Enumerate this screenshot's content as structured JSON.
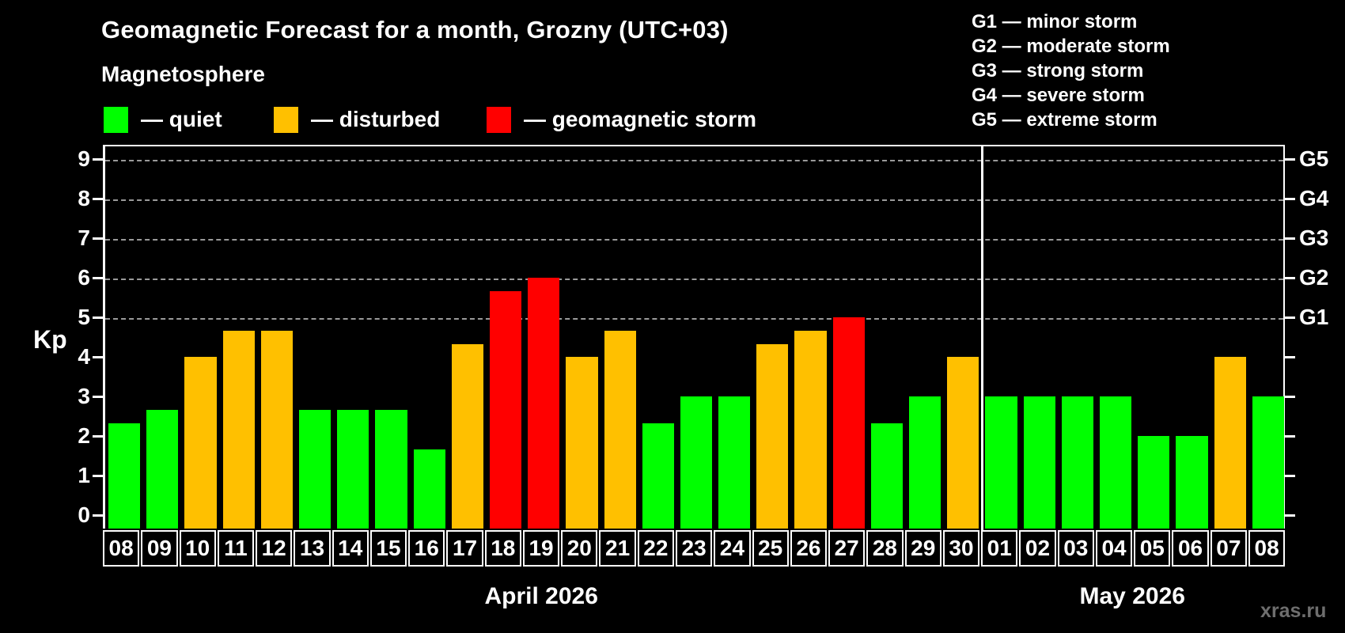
{
  "header": {
    "title": "Geomagnetic Forecast for a month, Grozny (UTC+03)",
    "subtitle": "Magnetosphere"
  },
  "legend": {
    "items": [
      {
        "name": "quiet",
        "label": "— quiet",
        "color": "#00ff00"
      },
      {
        "name": "disturbed",
        "label": "— disturbed",
        "color": "#ffc000"
      },
      {
        "name": "storm",
        "label": "— geomagnetic storm",
        "color": "#ff0000"
      }
    ]
  },
  "g_legend": {
    "lines": [
      "G1 — minor storm",
      "G2 — moderate storm",
      "G3 — strong storm",
      "G4 — severe storm",
      "G5 — extreme storm"
    ]
  },
  "watermark": "xras.ru",
  "chart_data": {
    "type": "bar",
    "title": "Geomagnetic Forecast for a month, Grozny (UTC+03)",
    "ylabel": "Kp",
    "ylim": [
      0,
      9.35
    ],
    "yticks": [
      0,
      1,
      2,
      3,
      4,
      5,
      6,
      7,
      8,
      9
    ],
    "gridlines_at": [
      5,
      6,
      7,
      8,
      9
    ],
    "grid": "dashed, only at storm levels G1–G5",
    "legend_position": "top-left",
    "right_axis_labels": [
      {
        "value": 5,
        "label": "G1"
      },
      {
        "value": 6,
        "label": "G2"
      },
      {
        "value": 7,
        "label": "G3"
      },
      {
        "value": 8,
        "label": "G4"
      },
      {
        "value": 9,
        "label": "G5"
      }
    ],
    "level_colors": {
      "quiet": "#00ff00",
      "disturbed": "#ffc000",
      "storm": "#ff0000"
    },
    "months": [
      {
        "label": "April 2026",
        "count": 23
      },
      {
        "label": "May 2026",
        "count": 8
      }
    ],
    "bars": [
      {
        "day": "08",
        "value": 2.33,
        "level": "quiet"
      },
      {
        "day": "09",
        "value": 2.67,
        "level": "quiet"
      },
      {
        "day": "10",
        "value": 4.0,
        "level": "disturbed"
      },
      {
        "day": "11",
        "value": 4.67,
        "level": "disturbed"
      },
      {
        "day": "12",
        "value": 4.67,
        "level": "disturbed"
      },
      {
        "day": "13",
        "value": 2.67,
        "level": "quiet"
      },
      {
        "day": "14",
        "value": 2.67,
        "level": "quiet"
      },
      {
        "day": "15",
        "value": 2.67,
        "level": "quiet"
      },
      {
        "day": "16",
        "value": 1.67,
        "level": "quiet"
      },
      {
        "day": "17",
        "value": 4.33,
        "level": "disturbed"
      },
      {
        "day": "18",
        "value": 5.67,
        "level": "storm"
      },
      {
        "day": "19",
        "value": 6.0,
        "level": "storm"
      },
      {
        "day": "20",
        "value": 4.0,
        "level": "disturbed"
      },
      {
        "day": "21",
        "value": 4.67,
        "level": "disturbed"
      },
      {
        "day": "22",
        "value": 2.33,
        "level": "quiet"
      },
      {
        "day": "23",
        "value": 3.0,
        "level": "quiet"
      },
      {
        "day": "24",
        "value": 3.0,
        "level": "quiet"
      },
      {
        "day": "25",
        "value": 4.33,
        "level": "disturbed"
      },
      {
        "day": "26",
        "value": 4.67,
        "level": "disturbed"
      },
      {
        "day": "27",
        "value": 5.0,
        "level": "storm"
      },
      {
        "day": "28",
        "value": 2.33,
        "level": "quiet"
      },
      {
        "day": "29",
        "value": 3.0,
        "level": "quiet"
      },
      {
        "day": "30",
        "value": 4.0,
        "level": "disturbed"
      },
      {
        "day": "01",
        "value": 3.0,
        "level": "quiet"
      },
      {
        "day": "02",
        "value": 3.0,
        "level": "quiet"
      },
      {
        "day": "03",
        "value": 3.0,
        "level": "quiet"
      },
      {
        "day": "04",
        "value": 3.0,
        "level": "quiet"
      },
      {
        "day": "05",
        "value": 2.0,
        "level": "quiet"
      },
      {
        "day": "06",
        "value": 2.0,
        "level": "quiet"
      },
      {
        "day": "07",
        "value": 4.0,
        "level": "disturbed"
      },
      {
        "day": "08",
        "value": 3.0,
        "level": "quiet"
      }
    ]
  }
}
